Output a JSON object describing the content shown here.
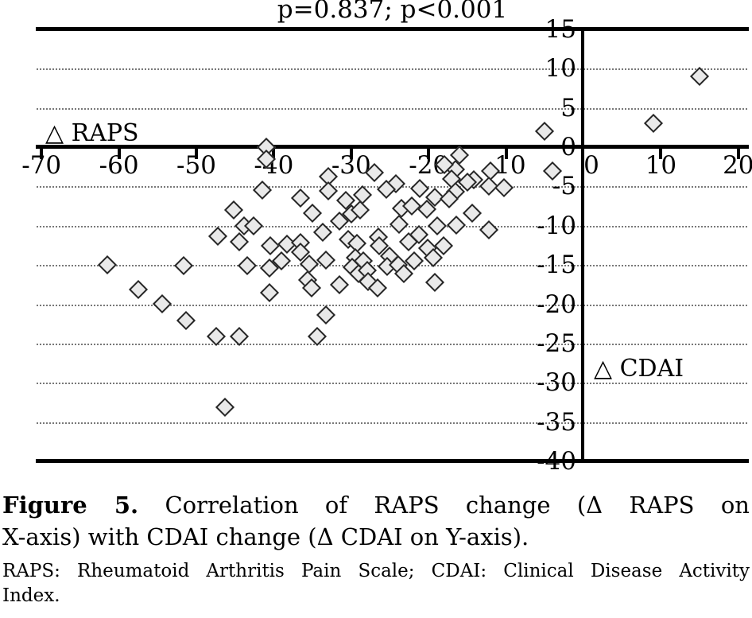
{
  "title": "p=0.837; p<0.001",
  "axis_labels": {
    "x": "△ RAPS",
    "y": "△ CDAI"
  },
  "chart_data": {
    "type": "scatter",
    "title": "p=0.837; p<0.001",
    "xlabel": "△ RAPS",
    "ylabel": "△ CDAI",
    "xlim": [
      -70,
      20
    ],
    "ylim": [
      -40,
      15
    ],
    "x_ticks": [
      -70,
      -60,
      -50,
      -40,
      -30,
      -20,
      -10,
      0,
      10,
      20
    ],
    "y_ticks": [
      15,
      10,
      5,
      0,
      -5,
      -10,
      -15,
      -20,
      -25,
      -30,
      -35,
      -40
    ],
    "gridlines_y": [
      10,
      5,
      -5,
      -10,
      -15,
      -20,
      -25,
      -30,
      -35
    ],
    "grid": "dotted horizontal",
    "legend_position": "none",
    "marker": "diamond",
    "marker_fill": "#e9e9e9",
    "marker_stroke": "#262626",
    "points": [
      [
        15,
        9
      ],
      [
        9,
        3
      ],
      [
        -5,
        2
      ],
      [
        -4,
        -3
      ],
      [
        -41,
        0
      ],
      [
        -41,
        -1.5
      ],
      [
        -16,
        -1
      ],
      [
        -16.5,
        -2.8
      ],
      [
        -18,
        -2.2
      ],
      [
        -12,
        -3
      ],
      [
        -27,
        -3.2
      ],
      [
        -33,
        -3.7
      ],
      [
        -17,
        -4
      ],
      [
        -14.2,
        -4.2
      ],
      [
        -15,
        -4.5
      ],
      [
        -24.2,
        -4.7
      ],
      [
        -12.2,
        -5
      ],
      [
        -10.3,
        -5.2
      ],
      [
        -41.5,
        -5.5
      ],
      [
        -33,
        -5.6
      ],
      [
        -28.5,
        -6.1
      ],
      [
        -25.5,
        -5.4
      ],
      [
        -21.2,
        -5.3
      ],
      [
        -16.5,
        -5.7
      ],
      [
        -45.2,
        -8
      ],
      [
        -36.5,
        -6.5
      ],
      [
        -30.7,
        -6.8
      ],
      [
        -19.2,
        -6.4
      ],
      [
        -17.3,
        -6.6
      ],
      [
        -35,
        -8.4
      ],
      [
        -30,
        -8.5
      ],
      [
        -28.8,
        -8
      ],
      [
        -23.5,
        -7.8
      ],
      [
        -22.2,
        -7.5
      ],
      [
        -20.2,
        -7.9
      ],
      [
        -14.4,
        -8.4
      ],
      [
        -31.5,
        -9.4
      ],
      [
        -43.8,
        -10
      ],
      [
        -42.6,
        -10
      ],
      [
        -23.8,
        -9.8
      ],
      [
        -18.9,
        -10
      ],
      [
        -16.4,
        -9.9
      ],
      [
        -12.2,
        -10.5
      ],
      [
        -47.2,
        -11.3
      ],
      [
        -44.5,
        -12
      ],
      [
        -33.7,
        -10.8
      ],
      [
        -30.4,
        -11.7
      ],
      [
        -26.5,
        -11.4
      ],
      [
        -21.3,
        -11.1
      ],
      [
        -40.5,
        -12.6
      ],
      [
        -38.3,
        -12.4
      ],
      [
        -36.6,
        -12.2
      ],
      [
        -29.3,
        -12.3
      ],
      [
        -26.4,
        -12.6
      ],
      [
        -22.6,
        -12.1
      ],
      [
        -20.1,
        -12.9
      ],
      [
        -18.1,
        -12.6
      ],
      [
        -36.5,
        -13.4
      ],
      [
        -39,
        -14.5
      ],
      [
        -35.4,
        -14.9
      ],
      [
        -33.3,
        -14.4
      ],
      [
        -29.5,
        -14.1
      ],
      [
        -28.4,
        -14.5
      ],
      [
        -25.1,
        -13.9
      ],
      [
        -21.9,
        -14.5
      ],
      [
        -19.4,
        -14.1
      ],
      [
        -61.5,
        -15
      ],
      [
        -51.6,
        -15.1
      ],
      [
        -43.4,
        -15.1
      ],
      [
        -40.6,
        -15.4
      ],
      [
        -29.9,
        -15.3
      ],
      [
        -25.4,
        -15.2
      ],
      [
        -23.9,
        -15
      ],
      [
        -29.1,
        -16.1
      ],
      [
        -27.9,
        -15.7
      ],
      [
        -23.2,
        -16.1
      ],
      [
        -35.6,
        -16.9
      ],
      [
        -31.5,
        -17.5
      ],
      [
        -27.8,
        -17.1
      ],
      [
        -19.2,
        -17.2
      ],
      [
        -57.5,
        -18.1
      ],
      [
        -40.6,
        -18.5
      ],
      [
        -35.1,
        -17.9
      ],
      [
        -26.6,
        -17.9
      ],
      [
        -54.4,
        -19.9
      ],
      [
        -33.3,
        -21.4
      ],
      [
        -51.3,
        -22.1
      ],
      [
        -47.4,
        -24.1
      ],
      [
        -44.5,
        -24.1
      ],
      [
        -34.4,
        -24.1
      ],
      [
        -46.3,
        -33.1
      ]
    ]
  },
  "caption": {
    "figure_label": "Figure 5.",
    "line1_rest": " Correlation of RAPS change (Δ RAPS on",
    "line2": "X-axis) with CDAI change (Δ CDAI on Y-axis).",
    "abbr_line1": "RAPS: Rheumatoid Arthritis Pain Scale; CDAI: Clinical Disease Activity",
    "abbr_line2": "Index."
  }
}
